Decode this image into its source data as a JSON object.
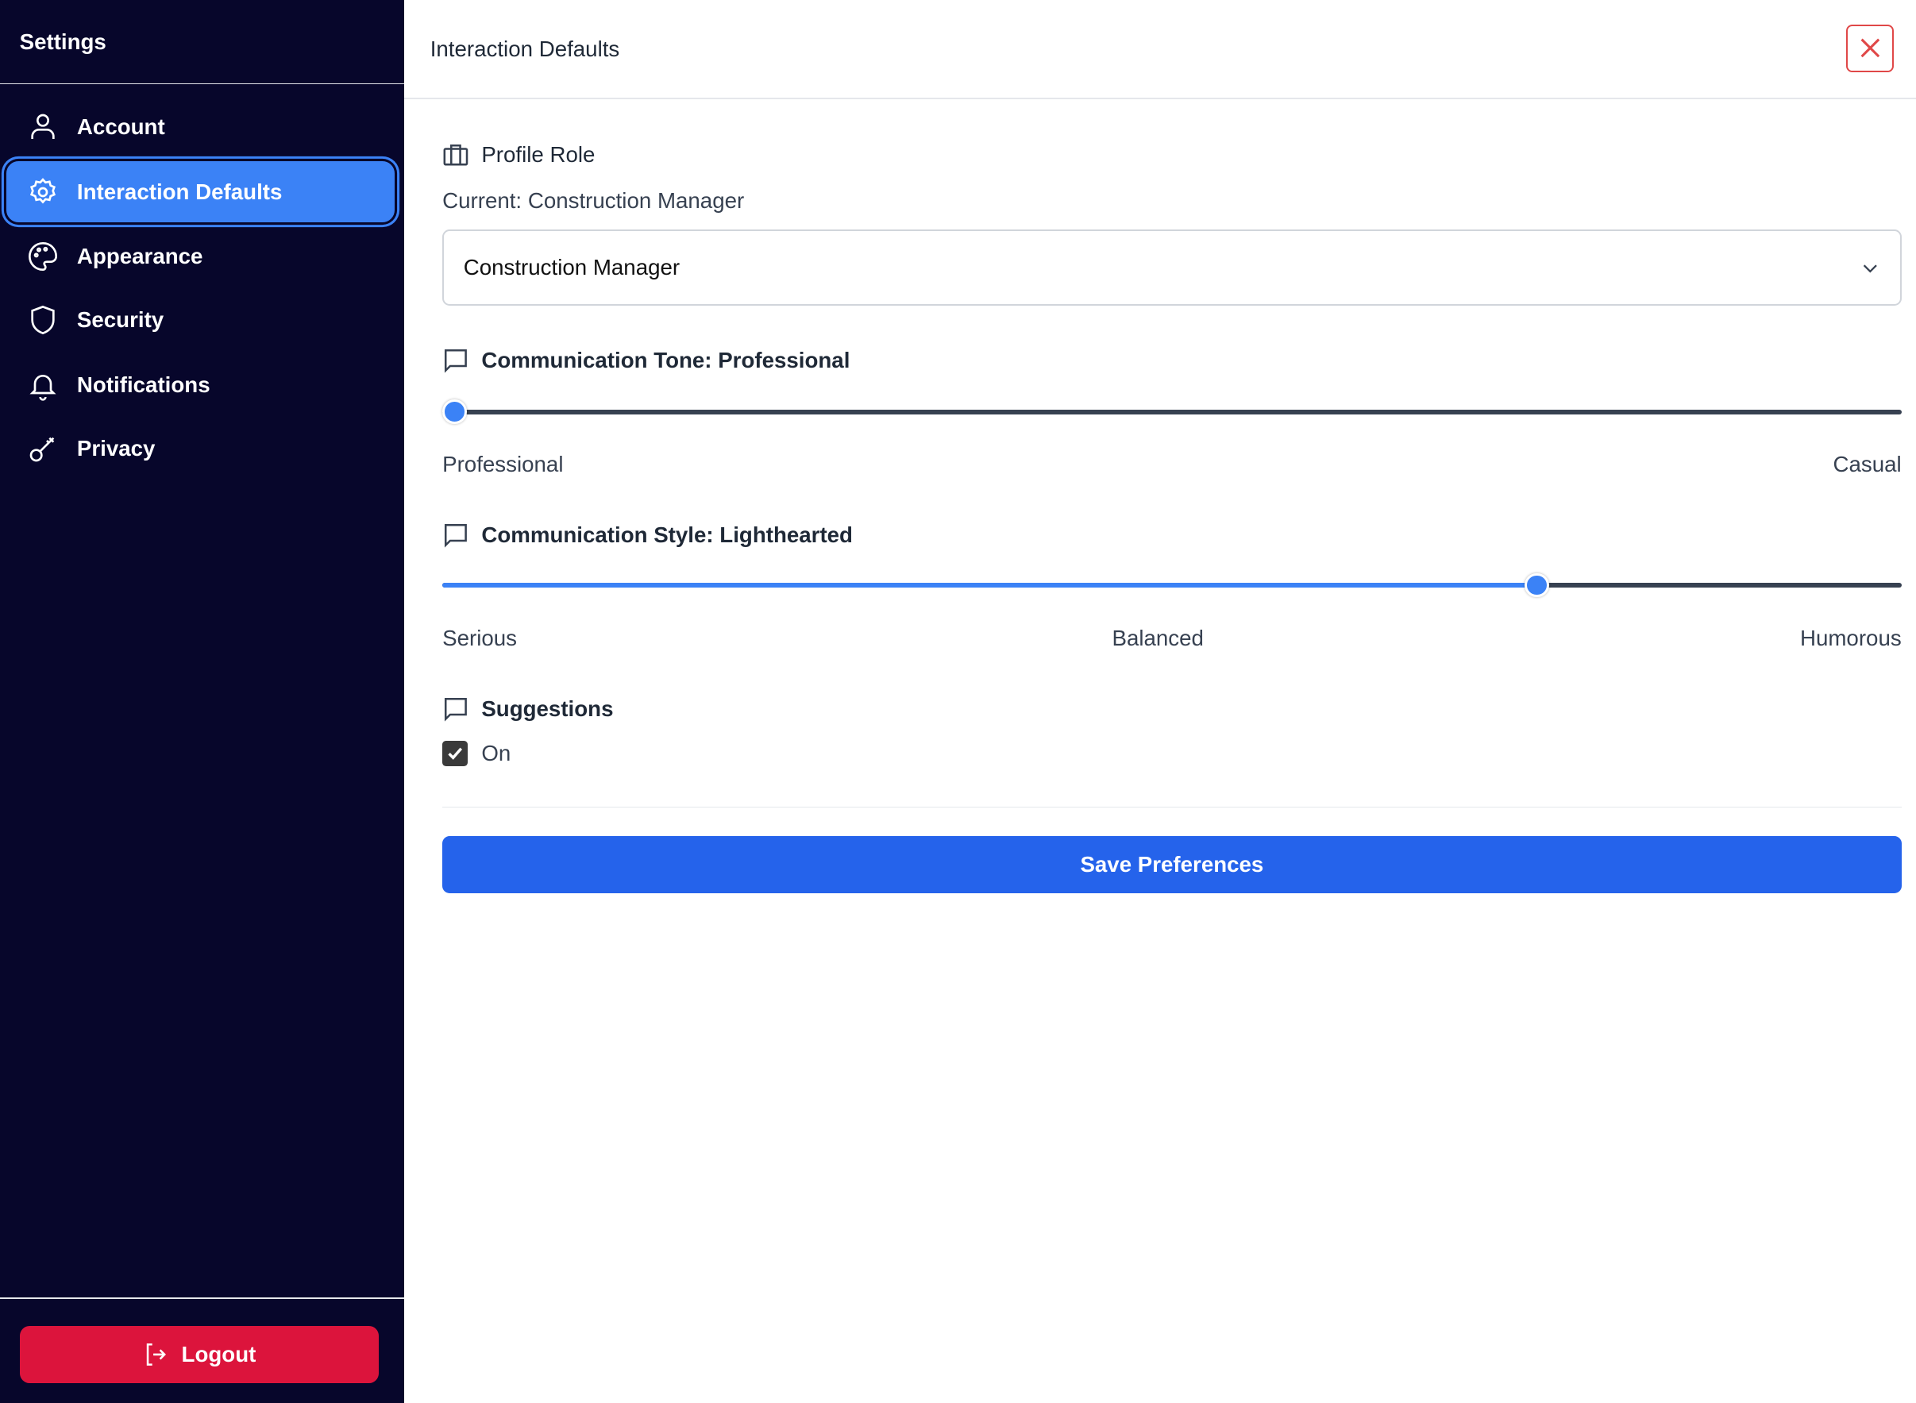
{
  "sidebar": {
    "title": "Settings",
    "items": [
      {
        "label": "Account",
        "icon": "user-icon",
        "active": false
      },
      {
        "label": "Interaction Defaults",
        "icon": "gear-icon",
        "active": true
      },
      {
        "label": "Appearance",
        "icon": "palette-icon",
        "active": false
      },
      {
        "label": "Security",
        "icon": "shield-icon",
        "active": false
      },
      {
        "label": "Notifications",
        "icon": "bell-icon",
        "active": false
      },
      {
        "label": "Privacy",
        "icon": "key-icon",
        "active": false
      }
    ],
    "logout_label": "Logout"
  },
  "header": {
    "title": "Interaction Defaults"
  },
  "profile_role": {
    "label": "Profile Role",
    "current": "Current: Construction Manager",
    "selected": "Construction Manager"
  },
  "tone": {
    "label": "Communication Tone: Professional",
    "value_percent": 0,
    "min_label": "Professional",
    "max_label": "Casual"
  },
  "style": {
    "label": "Communication Style: Lighthearted",
    "value_percent": 75,
    "min_label": "Serious",
    "mid_label": "Balanced",
    "max_label": "Humorous"
  },
  "suggestions": {
    "label": "Suggestions",
    "checked": true,
    "option_label": "On"
  },
  "save_label": "Save Preferences",
  "colors": {
    "sidebar_bg": "#07062b",
    "accent": "#3b82f6",
    "save": "#2563eb",
    "logout": "#dc143c",
    "close": "#e04848"
  }
}
